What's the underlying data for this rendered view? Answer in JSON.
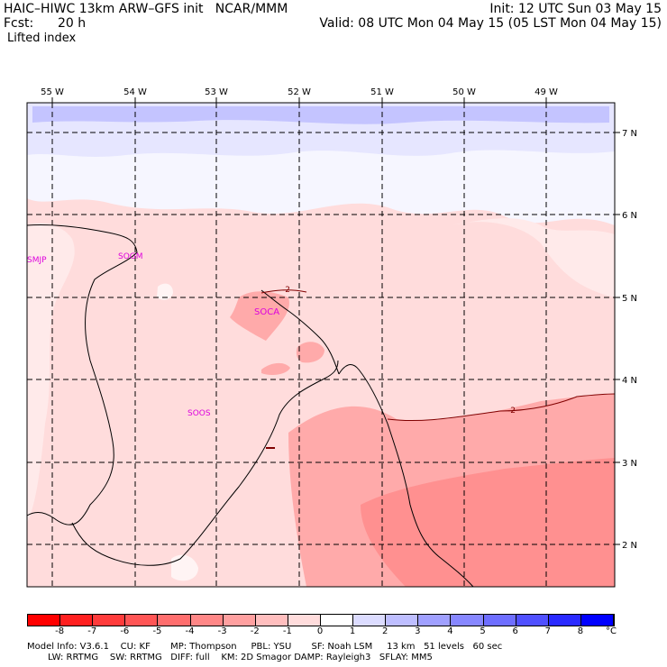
{
  "header": {
    "line1_left": "HAIC–HIWC 13km ARW–GFS init   NCAR/MMM",
    "line1_right": "Init: 12 UTC Sun 03 May 15",
    "line2_left_label": "Fcst:",
    "line2_left_value": "20 h",
    "line2_right": "Valid: 08 UTC Mon 04 May 15 (05 LST Mon 04 May 15)",
    "field_name": "Lifted index"
  },
  "map": {
    "lon_labels": [
      "55 W",
      "54 W",
      "53 W",
      "52 W",
      "51 W",
      "50 W",
      "49 W"
    ],
    "lat_labels": [
      "7 N",
      "6 N",
      "5 N",
      "4 N",
      "3 N",
      "2 N"
    ],
    "stations": [
      "SMJP",
      "SOGM",
      "SOCA",
      "SOOS"
    ],
    "contour_labels": [
      "-2",
      "-2"
    ]
  },
  "colorbar": {
    "ticks": [
      "-8",
      "-7",
      "-6",
      "-5",
      "-4",
      "-3",
      "-2",
      "-1",
      "0",
      "1",
      "2",
      "3",
      "4",
      "5",
      "6",
      "7",
      "8"
    ],
    "unit": "°C",
    "colors": [
      "#ff0000",
      "#ff2020",
      "#ff3c3c",
      "#ff5555",
      "#ff6e6e",
      "#ff8787",
      "#ffa0a0",
      "#ffbebe",
      "#ffdcdc",
      "#ffffff",
      "#dcdcff",
      "#bebeff",
      "#a0a0ff",
      "#8787ff",
      "#6e6eff",
      "#5050ff",
      "#2a2aff",
      "#0000ff"
    ]
  },
  "footer": {
    "line1": "Model Info: V3.6.1    CU: KF       MP: Thompson     PBL: YSU       SF: Noah LSM     13 km   51 levels   60 sec",
    "line2": "LW: RRTMG    SW: RRTMG   DIFF: full    KM: 2D Smagor DAMP: Rayleigh3   SFLAY: MM5"
  },
  "colors": {
    "frame": "#000000",
    "station_text": "#dd00dd",
    "contour": "#800000",
    "coast": "#000000"
  }
}
